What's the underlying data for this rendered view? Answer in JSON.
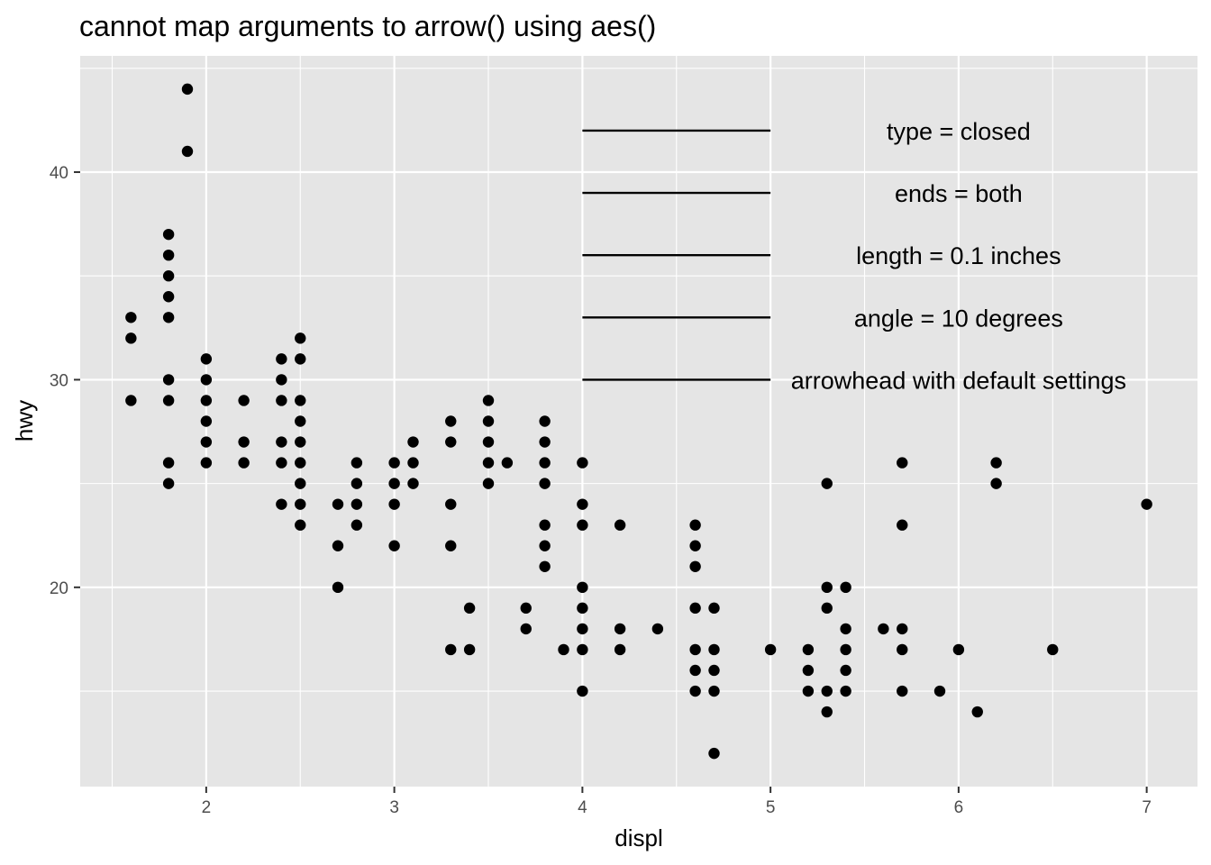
{
  "chart_data": {
    "type": "scatter",
    "title": "cannot map arguments to arrow() using aes()",
    "xlabel": "displ",
    "ylabel": "hwy",
    "xlim": [
      1.33,
      7.27
    ],
    "ylim": [
      10.4,
      45.6
    ],
    "x_ticks": [
      2,
      3,
      4,
      5,
      6,
      7
    ],
    "y_ticks": [
      20,
      30,
      40
    ],
    "grid": true,
    "panel_background": "#e5e5e5",
    "grid_color": "#ffffff",
    "point_color": "#000000",
    "points": [
      [
        1.9,
        44
      ],
      [
        1.9,
        41
      ],
      [
        1.8,
        37
      ],
      [
        1.8,
        36
      ],
      [
        1.8,
        35
      ],
      [
        1.8,
        34
      ],
      [
        1.8,
        33
      ],
      [
        1.8,
        30
      ],
      [
        1.8,
        29
      ],
      [
        1.8,
        26
      ],
      [
        1.8,
        25
      ],
      [
        1.6,
        33
      ],
      [
        1.6,
        32
      ],
      [
        1.6,
        29
      ],
      [
        2.0,
        31
      ],
      [
        2.0,
        30
      ],
      [
        2.0,
        29
      ],
      [
        2.0,
        28
      ],
      [
        2.0,
        27
      ],
      [
        2.0,
        26
      ],
      [
        2.2,
        29
      ],
      [
        2.2,
        27
      ],
      [
        2.2,
        26
      ],
      [
        2.4,
        31
      ],
      [
        2.4,
        30
      ],
      [
        2.4,
        29
      ],
      [
        2.4,
        27
      ],
      [
        2.4,
        26
      ],
      [
        2.4,
        24
      ],
      [
        2.5,
        32
      ],
      [
        2.5,
        31
      ],
      [
        2.5,
        29
      ],
      [
        2.5,
        28
      ],
      [
        2.5,
        27
      ],
      [
        2.5,
        26
      ],
      [
        2.5,
        25
      ],
      [
        2.5,
        24
      ],
      [
        2.5,
        23
      ],
      [
        2.7,
        24
      ],
      [
        2.7,
        22
      ],
      [
        2.7,
        20
      ],
      [
        2.8,
        26
      ],
      [
        2.8,
        25
      ],
      [
        2.8,
        24
      ],
      [
        2.8,
        23
      ],
      [
        3.0,
        26
      ],
      [
        3.0,
        25
      ],
      [
        3.0,
        24
      ],
      [
        3.0,
        22
      ],
      [
        3.1,
        27
      ],
      [
        3.1,
        26
      ],
      [
        3.1,
        25
      ],
      [
        3.3,
        28
      ],
      [
        3.3,
        27
      ],
      [
        3.3,
        24
      ],
      [
        3.3,
        22
      ],
      [
        3.3,
        17
      ],
      [
        3.4,
        19
      ],
      [
        3.4,
        17
      ],
      [
        3.5,
        29
      ],
      [
        3.5,
        28
      ],
      [
        3.5,
        27
      ],
      [
        3.5,
        26
      ],
      [
        3.5,
        25
      ],
      [
        3.6,
        26
      ],
      [
        3.7,
        19
      ],
      [
        3.7,
        18
      ],
      [
        3.8,
        28
      ],
      [
        3.8,
        27
      ],
      [
        3.8,
        26
      ],
      [
        3.8,
        25
      ],
      [
        3.8,
        23
      ],
      [
        3.8,
        22
      ],
      [
        3.8,
        21
      ],
      [
        3.9,
        17
      ],
      [
        4.0,
        26
      ],
      [
        4.0,
        24
      ],
      [
        4.0,
        23
      ],
      [
        4.0,
        20
      ],
      [
        4.0,
        19
      ],
      [
        4.0,
        18
      ],
      [
        4.0,
        17
      ],
      [
        4.0,
        15
      ],
      [
        4.2,
        23
      ],
      [
        4.2,
        18
      ],
      [
        4.2,
        17
      ],
      [
        4.4,
        18
      ],
      [
        4.6,
        23
      ],
      [
        4.6,
        22
      ],
      [
        4.6,
        21
      ],
      [
        4.6,
        19
      ],
      [
        4.6,
        17
      ],
      [
        4.6,
        16
      ],
      [
        4.6,
        15
      ],
      [
        4.7,
        19
      ],
      [
        4.7,
        17
      ],
      [
        4.7,
        16
      ],
      [
        4.7,
        15
      ],
      [
        4.7,
        12
      ],
      [
        5.0,
        17
      ],
      [
        5.2,
        17
      ],
      [
        5.2,
        16
      ],
      [
        5.2,
        15
      ],
      [
        5.3,
        25
      ],
      [
        5.3,
        20
      ],
      [
        5.3,
        19
      ],
      [
        5.3,
        15
      ],
      [
        5.3,
        14
      ],
      [
        5.4,
        20
      ],
      [
        5.4,
        18
      ],
      [
        5.4,
        17
      ],
      [
        5.4,
        16
      ],
      [
        5.4,
        15
      ],
      [
        5.6,
        18
      ],
      [
        5.7,
        26
      ],
      [
        5.7,
        23
      ],
      [
        5.7,
        18
      ],
      [
        5.7,
        17
      ],
      [
        5.7,
        15
      ],
      [
        5.9,
        15
      ],
      [
        6.0,
        17
      ],
      [
        6.1,
        14
      ],
      [
        6.2,
        26
      ],
      [
        6.2,
        25
      ],
      [
        6.5,
        17
      ],
      [
        7.0,
        24
      ]
    ],
    "segments": [
      {
        "x": 4,
        "xend": 5,
        "y": 42,
        "label": "type = closed"
      },
      {
        "x": 4,
        "xend": 5,
        "y": 39,
        "label": "ends = both"
      },
      {
        "x": 4,
        "xend": 5,
        "y": 36,
        "label": "length = 0.1 inches"
      },
      {
        "x": 4,
        "xend": 5,
        "y": 33,
        "label": "angle = 10 degrees"
      },
      {
        "x": 4,
        "xend": 5,
        "y": 30,
        "label": "arrowhead with default settings"
      }
    ],
    "label_x": 6
  }
}
